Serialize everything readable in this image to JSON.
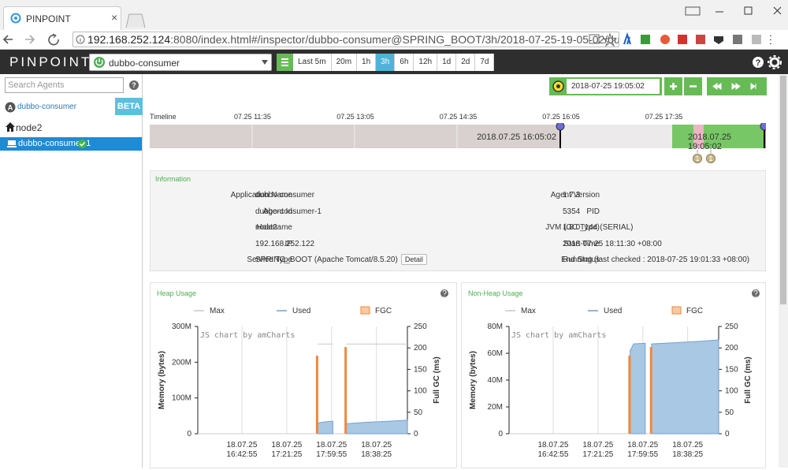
{
  "browser": {
    "tab_title": "PINPOINT",
    "url_host": "192.168.252.124",
    "url_rest": ":8080/index.html#/inspector/dubbo-consumer@SPRING_BOOT/3h/2018-07-25-19-05-02/dubbo-consum..."
  },
  "header": {
    "logo": "PINPOINT",
    "application": "dubbo-consumer",
    "periods": [
      "Last 5m",
      "20m",
      "1h",
      "3h",
      "6h",
      "12h",
      "1d",
      "2d",
      "7d"
    ],
    "active_period": 3
  },
  "sidebar": {
    "search_placeholder": "Search Agents",
    "application": "dubbo-consumer",
    "badge": "BETA",
    "host": "node2",
    "agent": "dubbo-consumer-1"
  },
  "toolbar": {
    "datetime": "2018-07-25 19:05:02"
  },
  "timeline": {
    "label": "Timeline",
    "ticks": [
      "07.25 11:35",
      "07.25 13:05",
      "07.25 14:35",
      "07.25 16:05",
      "07.25 17:35"
    ],
    "selection_start": "2018.07.25 16:05:02",
    "selection_end": "2018.07.25 19:05:02",
    "event_counts": [
      1,
      1
    ]
  },
  "information": {
    "title": "Information",
    "left": [
      {
        "label": "Application Name",
        "value": "dubbo-consumer"
      },
      {
        "label": "Agent Id",
        "value": "dubbo-consumer-1"
      },
      {
        "label": "Hostname",
        "value": "node2"
      },
      {
        "label": "IP",
        "value": "192.168.252.122"
      },
      {
        "label": "Service Type",
        "value": "SPRING_BOOT  (Apache Tomcat/8.5.20)"
      }
    ],
    "right": [
      {
        "label": "Agent Version",
        "value": "1.7.3"
      },
      {
        "label": "PID",
        "value": "5354"
      },
      {
        "label": "JVM (GC Type)",
        "value": "1.8.0_144 (SERIAL)"
      },
      {
        "label": "Start Time",
        "value": "2018-07-25 18:11:30 +08:00"
      },
      {
        "label": "End Status",
        "value": "Running (last checked : 2018-07-25 19:01:33 +08:00)"
      }
    ],
    "detail_button": {
      "row": 4,
      "text": "Detail"
    }
  },
  "charts": [
    {
      "type": "area",
      "title": "Heap Usage",
      "watermark": "JS chart by amCharts",
      "y_label": "Memory (bytes)",
      "y2_label": "Full GC (ms)",
      "grid": true,
      "x": [
        "17:47:30",
        "17:48:00",
        "17:54:00",
        "18:01:00",
        "18:02:00",
        "18:12:00",
        "18:12:30",
        "18:30:00",
        "18:50:00",
        "19:05:00"
      ],
      "xlim": [
        "16:05:02",
        "19:05:02"
      ],
      "xticks": [
        [
          "18.07.25",
          "16:42:55"
        ],
        [
          "18.07.25",
          "17:21:25"
        ],
        [
          "18.07.25",
          "17:59:55"
        ],
        [
          "18.07.25",
          "18:38:25"
        ]
      ],
      "ylim": [
        0,
        300000000
      ],
      "yticks": [
        0,
        {
          "value": 100000000,
          "label": "100M"
        },
        {
          "value": 200000000,
          "label": "200M"
        },
        {
          "value": 300000000,
          "label": "300M"
        }
      ],
      "y2lim": [
        0,
        250
      ],
      "y2ticks": [
        0,
        50,
        100,
        150,
        200,
        250
      ],
      "series": [
        {
          "name": "Max",
          "type": "line",
          "color": "#c8c8c8",
          "values": [
            null,
            251000000,
            251000000,
            251000000,
            null,
            null,
            251000000,
            251000000,
            251000000,
            251000000
          ]
        },
        {
          "name": "Used",
          "type": "area",
          "color": "#a9c8e4",
          "values": [
            null,
            30000000,
            33000000,
            35000000,
            null,
            null,
            28000000,
            32000000,
            35000000,
            38000000
          ]
        },
        {
          "name": "FGC",
          "type": "bar",
          "axis": "y2",
          "color": "#f0883a",
          "values": [
            182,
            null,
            null,
            null,
            null,
            202,
            null,
            null,
            null,
            null
          ]
        }
      ]
    },
    {
      "type": "area",
      "title": "Non-Heap Usage",
      "watermark": "JS chart by amCharts",
      "y_label": "Memory (bytes)",
      "y2_label": "Full GC (ms)",
      "grid": true,
      "x": [
        "17:48:30",
        "17:49:00",
        "17:52:00",
        "18:02:00",
        "18:04:00",
        "18:07:00",
        "18:07:30",
        "18:30:00",
        "18:50:00",
        "19:05:00"
      ],
      "xlim": [
        "16:05:02",
        "19:05:02"
      ],
      "xticks": [
        [
          "18.07.25",
          "16:42:55"
        ],
        [
          "18.07.25",
          "17:21:25"
        ],
        [
          "18.07.25",
          "17:59:55"
        ],
        [
          "18.07.25",
          "18:38:25"
        ]
      ],
      "ylim": [
        0,
        80000000
      ],
      "yticks": [
        0,
        {
          "value": 20000000,
          "label": "20M"
        },
        {
          "value": 40000000,
          "label": "40M"
        },
        {
          "value": 60000000,
          "label": "60M"
        },
        {
          "value": 80000000,
          "label": "80M"
        }
      ],
      "y2lim": [
        0,
        250
      ],
      "y2ticks": [
        0,
        50,
        100,
        150,
        200,
        250
      ],
      "series": [
        {
          "name": "Max",
          "type": "line",
          "color": "#c8c8c8",
          "values": [
            null,
            null,
            null,
            null,
            null,
            null,
            null,
            null,
            null,
            null
          ]
        },
        {
          "name": "Used",
          "type": "area",
          "color": "#a9c8e4",
          "values": [
            null,
            62000000,
            67000000,
            67500000,
            null,
            null,
            67000000,
            68000000,
            69000000,
            70000000
          ]
        },
        {
          "name": "FGC",
          "type": "bar",
          "axis": "y2",
          "color": "#f0883a",
          "values": [
            182,
            null,
            null,
            null,
            null,
            202,
            null,
            null,
            null,
            null
          ]
        }
      ]
    }
  ]
}
